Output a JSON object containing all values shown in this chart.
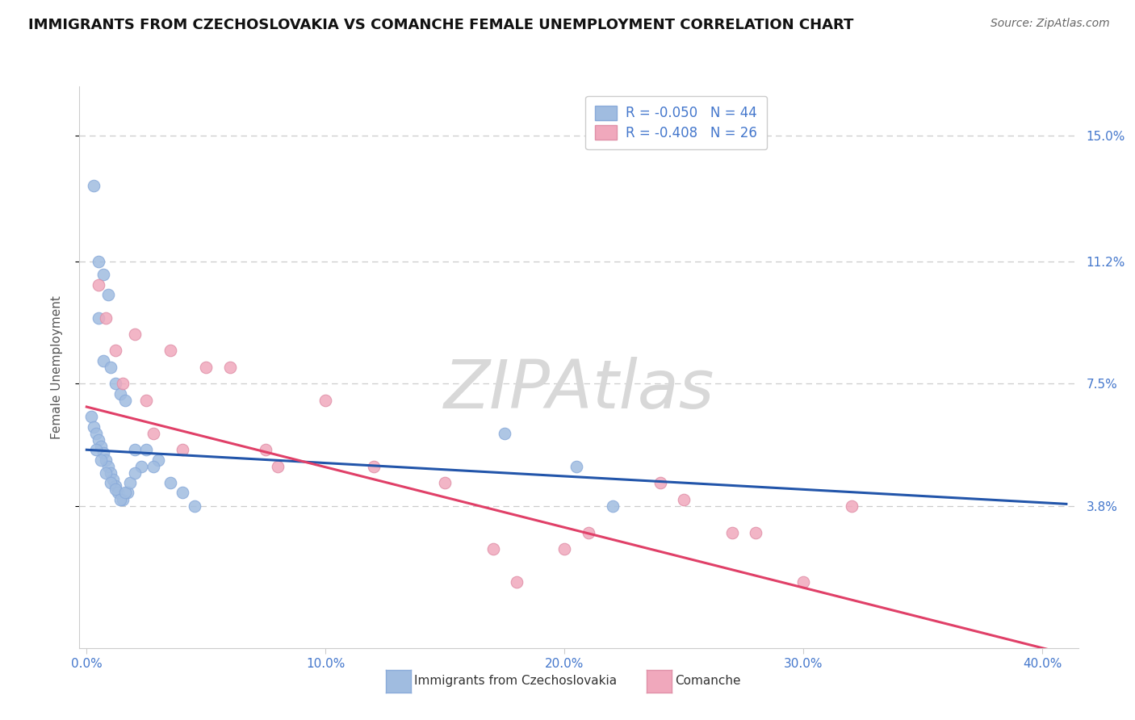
{
  "title": "IMMIGRANTS FROM CZECHOSLOVAKIA VS COMANCHE FEMALE UNEMPLOYMENT CORRELATION CHART",
  "source": "Source: ZipAtlas.com",
  "ylabel": "Female Unemployment",
  "x_tick_labels": [
    "0.0%",
    "10.0%",
    "20.0%",
    "30.0%",
    "40.0%"
  ],
  "x_tick_vals": [
    0.0,
    10.0,
    20.0,
    30.0,
    40.0
  ],
  "y_tick_labels": [
    "3.8%",
    "7.5%",
    "11.2%",
    "15.0%"
  ],
  "y_tick_vals": [
    3.8,
    7.5,
    11.2,
    15.0
  ],
  "xlim": [
    -0.3,
    41.5
  ],
  "ylim": [
    -0.5,
    16.5
  ],
  "blue_R": -0.05,
  "blue_N": 44,
  "pink_R": -0.408,
  "pink_N": 26,
  "blue_series_label": "Immigrants from Czechoslovakia",
  "pink_series_label": "Comanche",
  "blue_dot_color": "#a0bce0",
  "pink_dot_color": "#f0a8bc",
  "blue_line_color": "#2255aa",
  "pink_line_color": "#e04068",
  "title_fontsize": 13,
  "source_fontsize": 10,
  "tick_label_color": "#4477cc",
  "watermark_text": "ZIPAtlas",
  "blue_line_y0": 5.5,
  "blue_line_y40": 3.9,
  "pink_line_y0": 6.8,
  "pink_line_y40": -0.5,
  "blue_scatter_x": [
    0.3,
    0.5,
    0.7,
    0.9,
    0.5,
    0.7,
    1.0,
    1.2,
    1.4,
    1.6,
    0.2,
    0.3,
    0.4,
    0.5,
    0.6,
    0.7,
    0.8,
    0.9,
    1.0,
    1.1,
    1.2,
    1.3,
    1.5,
    1.7,
    2.0,
    2.3,
    0.4,
    0.6,
    0.8,
    1.0,
    1.2,
    1.4,
    1.6,
    1.8,
    2.0,
    2.5,
    3.0,
    3.5,
    4.0,
    4.5,
    2.8,
    17.5,
    20.5,
    22.0
  ],
  "blue_scatter_y": [
    13.5,
    11.2,
    10.8,
    10.2,
    9.5,
    8.2,
    8.0,
    7.5,
    7.2,
    7.0,
    6.5,
    6.2,
    6.0,
    5.8,
    5.6,
    5.4,
    5.2,
    5.0,
    4.8,
    4.6,
    4.4,
    4.2,
    4.0,
    4.2,
    5.5,
    5.0,
    5.5,
    5.2,
    4.8,
    4.5,
    4.3,
    4.0,
    4.2,
    4.5,
    4.8,
    5.5,
    5.2,
    4.5,
    4.2,
    3.8,
    5.0,
    6.0,
    5.0,
    3.8
  ],
  "pink_scatter_x": [
    0.5,
    0.8,
    1.2,
    2.0,
    2.5,
    3.5,
    5.0,
    7.5,
    8.0,
    10.0,
    12.0,
    15.0,
    17.0,
    18.0,
    20.0,
    21.0,
    24.0,
    25.0,
    27.0,
    28.0,
    30.0,
    32.0,
    1.5,
    2.8,
    4.0,
    6.0
  ],
  "pink_scatter_y": [
    10.5,
    9.5,
    8.5,
    9.0,
    7.0,
    8.5,
    8.0,
    5.5,
    5.0,
    7.0,
    5.0,
    4.5,
    2.5,
    1.5,
    2.5,
    3.0,
    4.5,
    4.0,
    3.0,
    3.0,
    1.5,
    3.8,
    7.5,
    6.0,
    5.5,
    8.0
  ]
}
